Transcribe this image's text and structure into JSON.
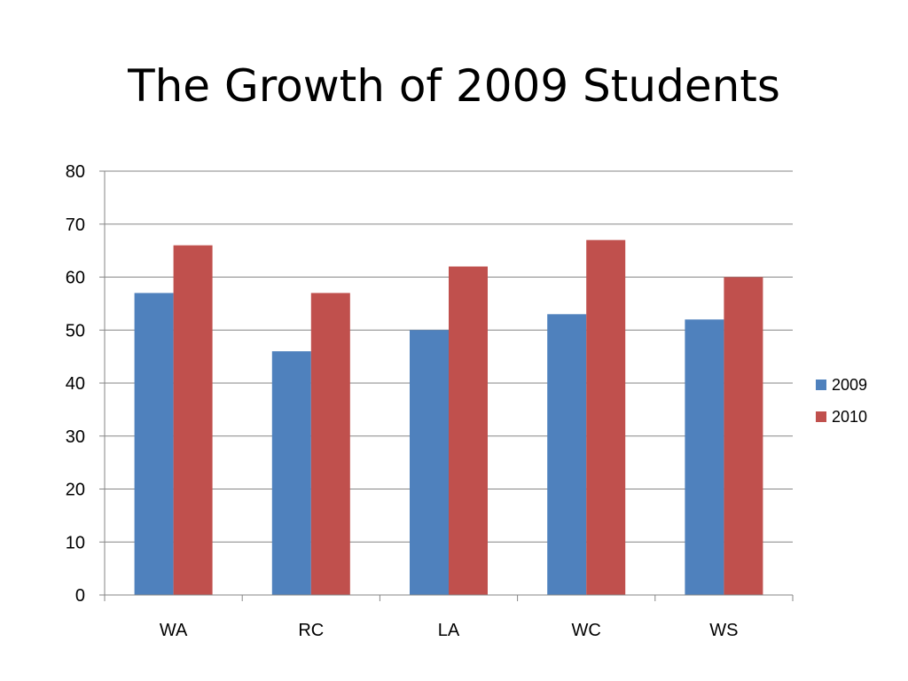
{
  "slide": {
    "title": "The Growth of 2009 Students"
  },
  "chart_data": {
    "type": "bar",
    "title": "The Growth of 2009 Students",
    "xlabel": "",
    "ylabel": "",
    "categories": [
      "WA",
      "RC",
      "LA",
      "WC",
      "WS"
    ],
    "series": [
      {
        "name": "2009",
        "color": "#4f81bd",
        "values": [
          57,
          46,
          50,
          53,
          52
        ]
      },
      {
        "name": "2010",
        "color": "#c0504d",
        "values": [
          66,
          57,
          62,
          67,
          60
        ]
      }
    ],
    "ylim": [
      0,
      80
    ],
    "yticks": [
      0,
      10,
      20,
      30,
      40,
      50,
      60,
      70,
      80
    ],
    "grid": true,
    "legend_position": "right"
  }
}
